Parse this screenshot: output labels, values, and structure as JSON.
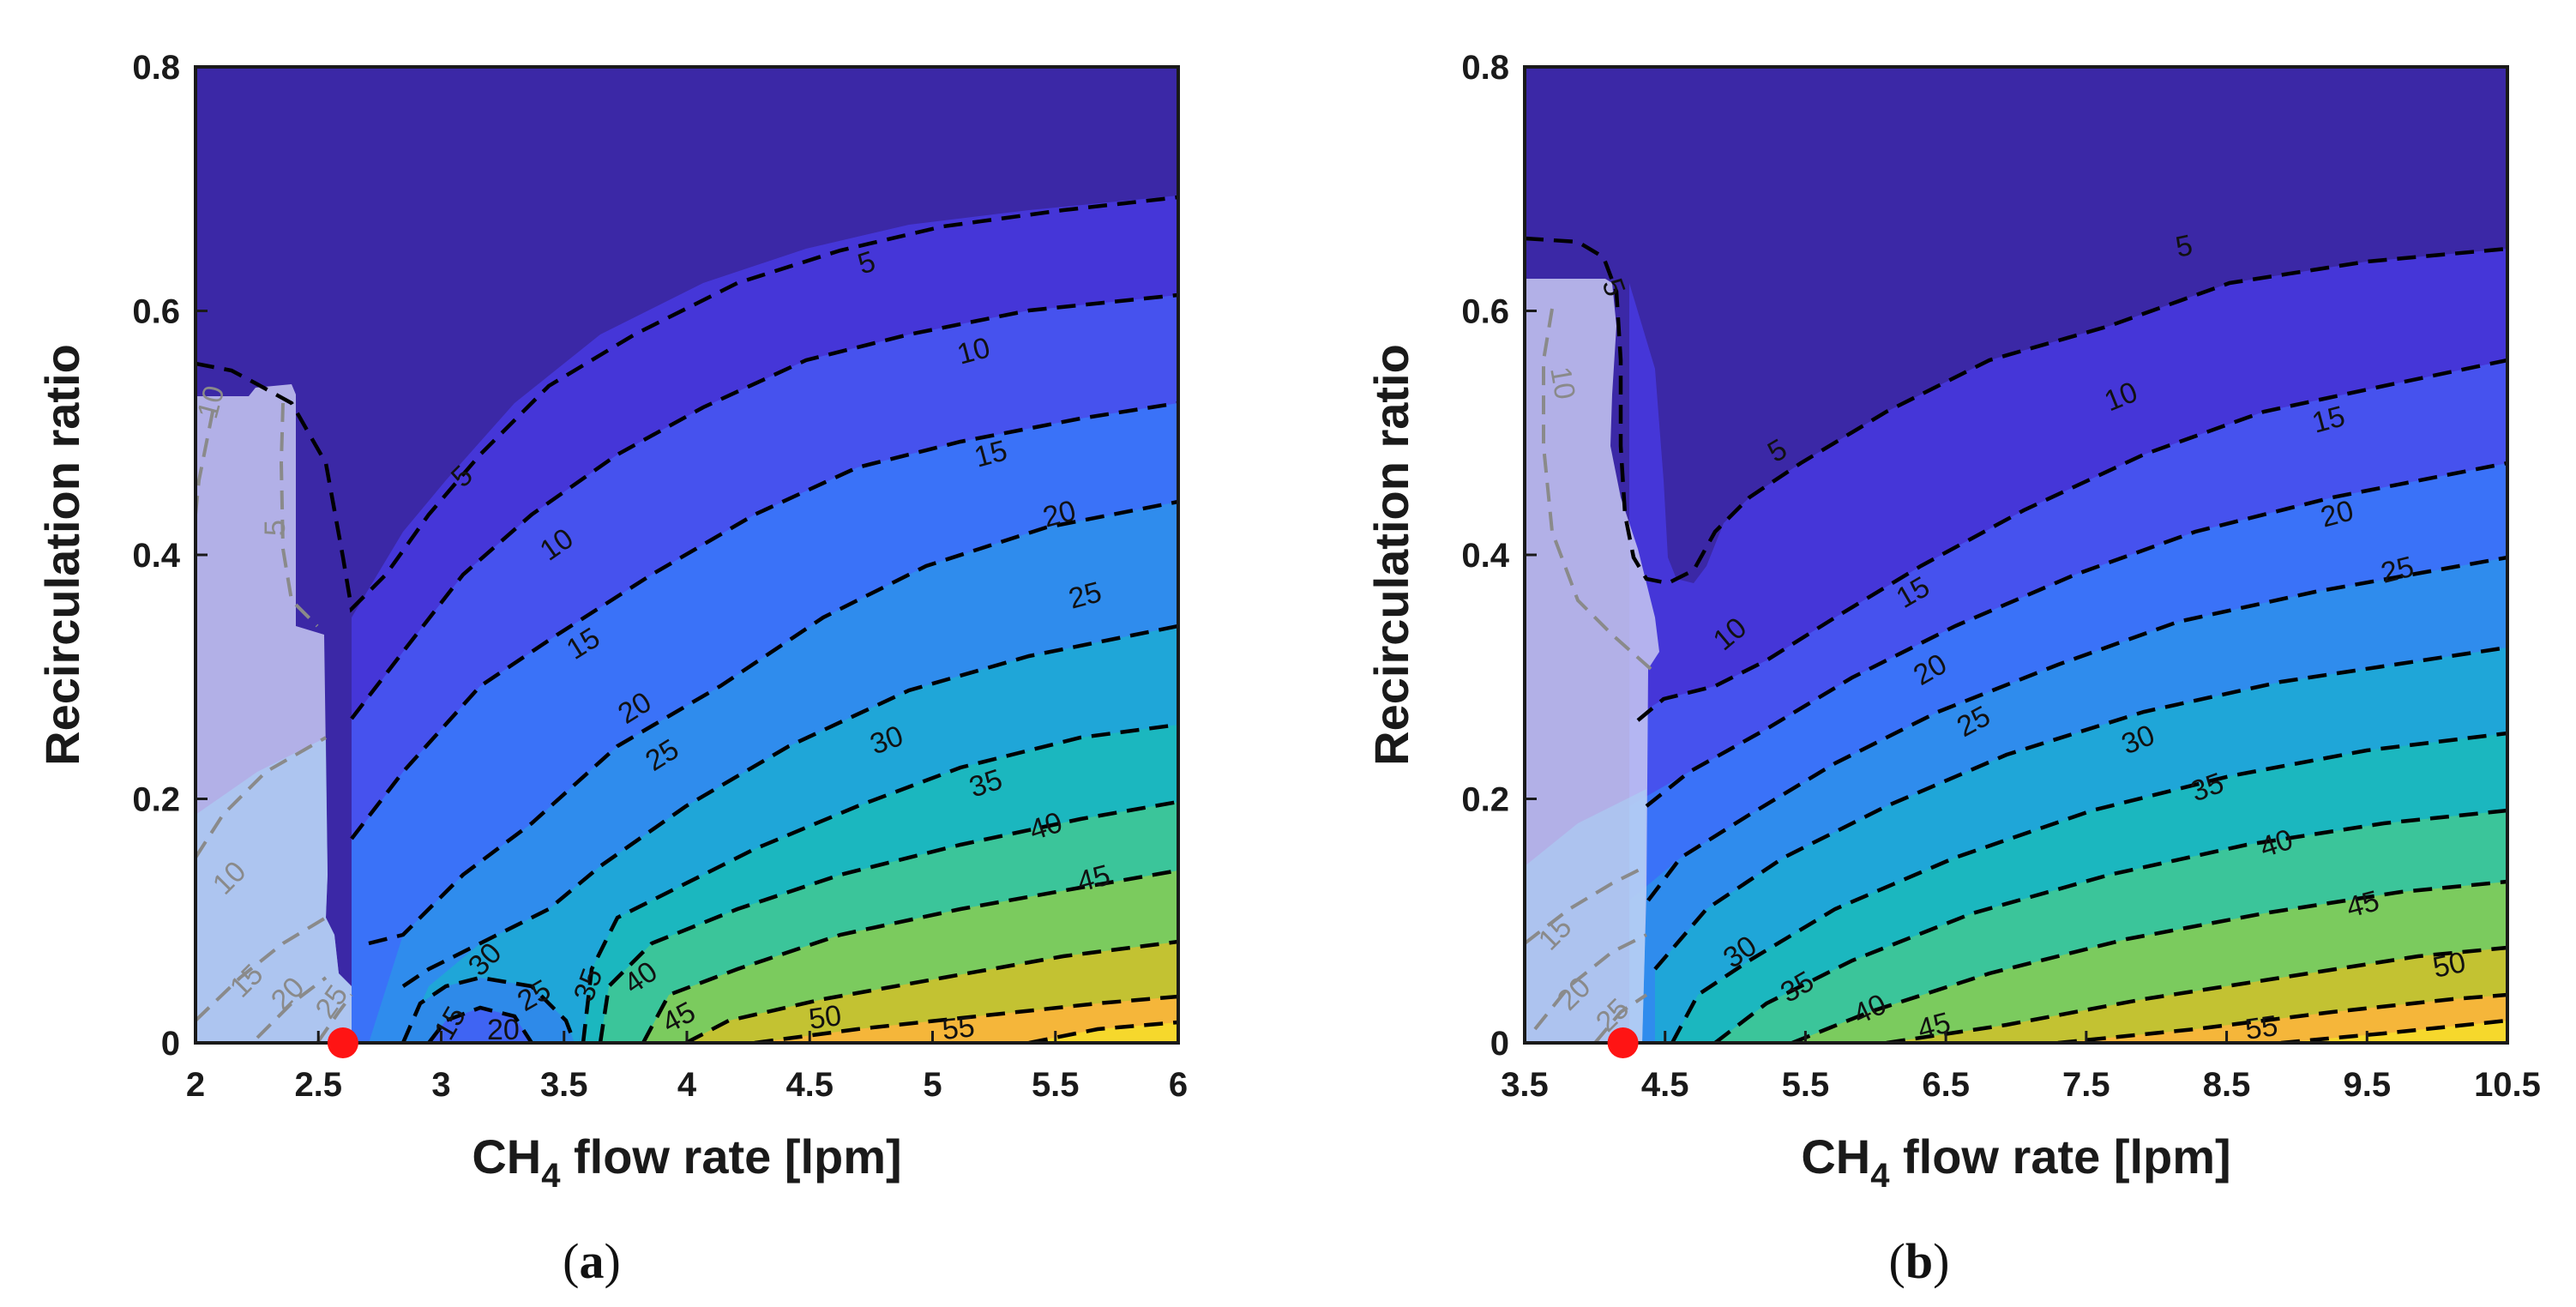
{
  "figure": {
    "panels": [
      {
        "id": "a",
        "caption_open": "(",
        "caption_letter": "a",
        "caption_close": ")"
      },
      {
        "id": "b",
        "caption_open": "(",
        "caption_letter": "b",
        "caption_close": ")"
      }
    ]
  },
  "chart_data": [
    {
      "type": "contour",
      "panel": "a",
      "xlabel_main": "CH",
      "xlabel_sub": "4",
      "xlabel_rest": " flow rate [lpm]",
      "ylabel": "Recirculation ratio",
      "xlim": [
        2,
        6
      ],
      "ylim": [
        0,
        0.8
      ],
      "xticks": [
        "2",
        "2.5",
        "3",
        "3.5",
        "4",
        "4.5",
        "5",
        "5.5",
        "6"
      ],
      "yticks": [
        "0",
        "0.2",
        "0.4",
        "0.6",
        "0.8"
      ],
      "levels": [
        5,
        10,
        15,
        20,
        25,
        30,
        35,
        40,
        45,
        50,
        55
      ],
      "colormap": [
        "#3b28a6",
        "#4536d8",
        "#4652ee",
        "#3a72f8",
        "#2f8ced",
        "#1fa6d8",
        "#1bb7bf",
        "#3bc59a",
        "#7bcb5e",
        "#c3c232",
        "#f5b63a",
        "#f6d82c"
      ],
      "contour_labels": [
        "5",
        "10",
        "15",
        "20",
        "25",
        "30",
        "35",
        "40",
        "45",
        "50",
        "55"
      ],
      "infeasible_region_labels": [
        "10",
        "5",
        "10",
        "15",
        "20",
        "25"
      ],
      "operating_point": {
        "x": 2.6,
        "y": 0
      }
    },
    {
      "type": "contour",
      "panel": "b",
      "xlabel_main": "CH",
      "xlabel_sub": "4",
      "xlabel_rest": " flow rate [lpm]",
      "ylabel": "Recirculation ratio",
      "xlim": [
        3.5,
        10.5
      ],
      "ylim": [
        0,
        0.8
      ],
      "xticks": [
        "3.5",
        "4.5",
        "5.5",
        "6.5",
        "7.5",
        "8.5",
        "9.5",
        "10.5"
      ],
      "yticks": [
        "0",
        "0.2",
        "0.4",
        "0.6",
        "0.8"
      ],
      "levels": [
        5,
        10,
        15,
        20,
        25,
        30,
        35,
        40,
        45,
        50,
        55
      ],
      "colormap": [
        "#3b28a6",
        "#4536d8",
        "#4652ee",
        "#3a72f8",
        "#2f8ced",
        "#1fa6d8",
        "#1bb7bf",
        "#3bc59a",
        "#7bcb5e",
        "#c3c232",
        "#f5b63a",
        "#f6d82c"
      ],
      "contour_labels": [
        "5",
        "5",
        "10",
        "10",
        "15",
        "15",
        "20",
        "20",
        "25",
        "25",
        "30",
        "30",
        "35",
        "35",
        "40",
        "40",
        "45",
        "45",
        "50",
        "55"
      ],
      "infeasible_region_labels": [
        "10",
        "15",
        "20",
        "25"
      ],
      "operating_point": {
        "x": 4.2,
        "y": 0
      }
    }
  ]
}
